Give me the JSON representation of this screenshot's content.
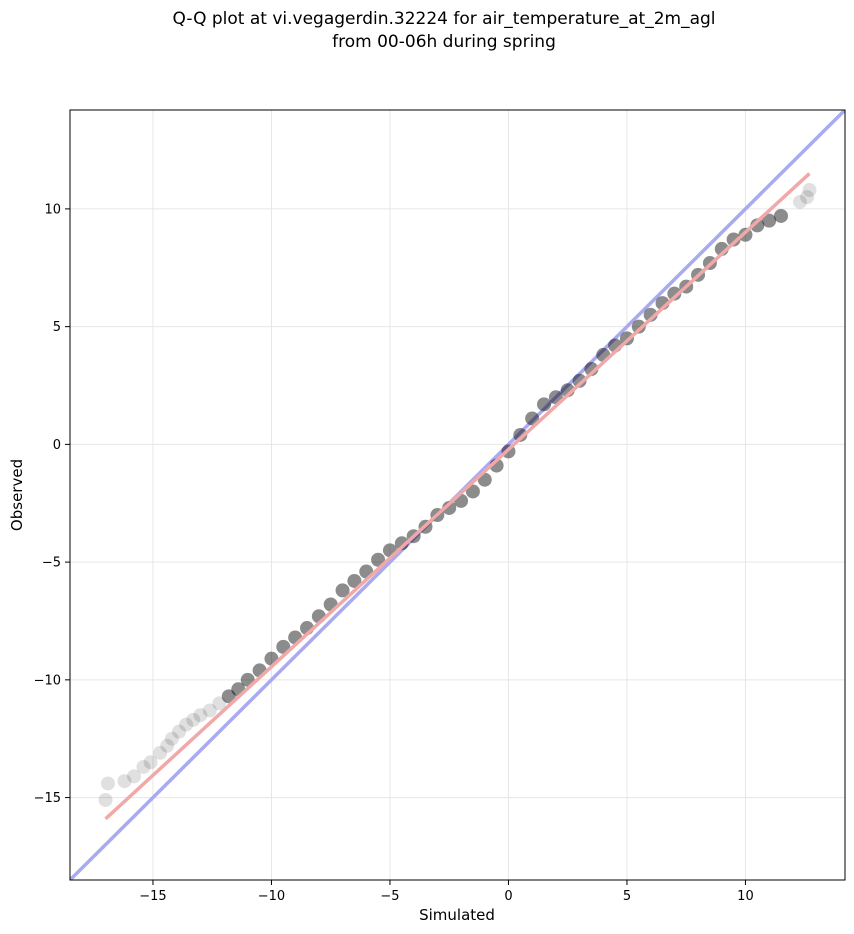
{
  "title_line1": "Q-Q plot at vi.vegagerdin.32224 for air_temperature_at_2m_agl",
  "title_line2": "from 00-06h during spring",
  "chart_data": {
    "type": "scatter",
    "title": "Q-Q plot at vi.vegagerdin.32224 for air_temperature_at_2m_agl\nfrom 00-06h during spring",
    "xlabel": "Simulated",
    "ylabel": "Observed",
    "xlim": [
      -18.5,
      14.2
    ],
    "ylim": [
      -18.5,
      14.2
    ],
    "xticks": [
      -15,
      -10,
      -5,
      0,
      5,
      10
    ],
    "yticks": [
      -15,
      -10,
      -5,
      0,
      5,
      10
    ],
    "xtick_labels": [
      "−15",
      "−10",
      "−5",
      "0",
      "5",
      "10"
    ],
    "ytick_labels": [
      "−15",
      "−10",
      "−5",
      "0",
      "5",
      "10"
    ],
    "grid": true,
    "reference_line": {
      "x": [
        -18.5,
        14.2
      ],
      "y": [
        -18.5,
        14.2
      ],
      "color": "#aaaaf0"
    },
    "fit_line": {
      "x": [
        -17.0,
        12.7
      ],
      "y": [
        -15.9,
        11.5
      ],
      "color": "#f0a8a8"
    },
    "series": [
      {
        "x": [
          -17.0,
          -16.9,
          -16.2,
          -15.8,
          -15.4,
          -15.1,
          -14.7,
          -14.4,
          -14.2,
          -13.9,
          -13.6,
          -13.3,
          -13.0,
          -12.6,
          -12.2,
          -11.8,
          -11.4,
          -11.0,
          -10.5,
          -10.0,
          -9.5,
          -9.0,
          -8.5,
          -8.0,
          -7.5,
          -7.0,
          -6.5,
          -6.0,
          -5.5,
          -5.0,
          -4.5,
          -4.0,
          -3.5,
          -3.0,
          -2.5,
          -2.0,
          -1.5,
          -1.0,
          -0.5,
          0.0,
          0.5,
          1.0,
          1.5,
          2.0,
          2.5,
          3.0,
          3.5,
          4.0,
          4.5,
          5.0,
          5.5,
          6.0,
          6.5,
          7.0,
          7.5,
          8.0,
          8.5,
          9.0,
          9.5,
          10.0,
          10.5,
          11.0,
          11.5,
          12.3,
          12.6,
          12.7
        ],
        "y": [
          -15.1,
          -14.4,
          -14.3,
          -14.1,
          -13.7,
          -13.5,
          -13.1,
          -12.8,
          -12.5,
          -12.2,
          -11.9,
          -11.7,
          -11.5,
          -11.3,
          -11.0,
          -10.7,
          -10.4,
          -10.0,
          -9.6,
          -9.1,
          -8.6,
          -8.2,
          -7.8,
          -7.3,
          -6.8,
          -6.2,
          -5.8,
          -5.4,
          -4.9,
          -4.5,
          -4.2,
          -3.9,
          -3.5,
          -3.0,
          -2.7,
          -2.4,
          -2.0,
          -1.5,
          -0.9,
          -0.3,
          0.4,
          1.1,
          1.7,
          2.0,
          2.3,
          2.7,
          3.2,
          3.8,
          4.2,
          4.5,
          5.0,
          5.5,
          6.0,
          6.4,
          6.7,
          7.2,
          7.7,
          8.3,
          8.7,
          8.9,
          9.3,
          9.5,
          9.7,
          10.3,
          10.5,
          10.8
        ]
      }
    ]
  }
}
